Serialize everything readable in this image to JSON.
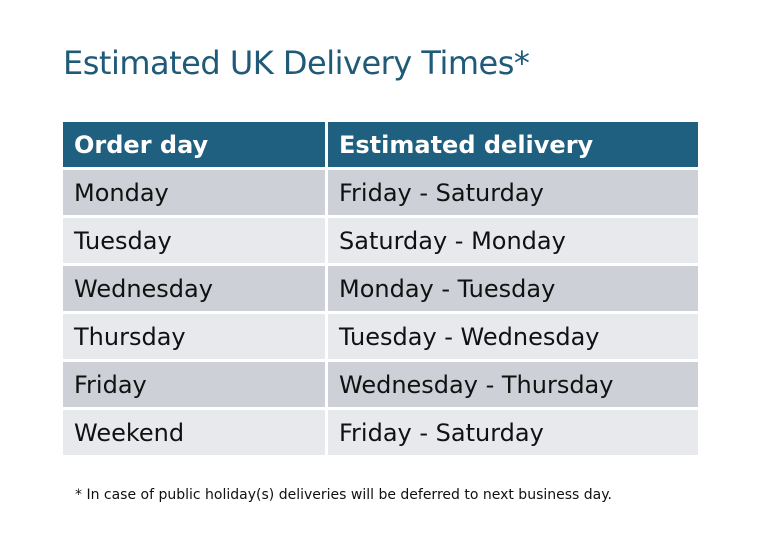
{
  "title": "Estimated UK Delivery Times*",
  "table": {
    "headers": [
      "Order day",
      "Estimated delivery"
    ],
    "rows": [
      [
        "Monday",
        "Friday - Saturday"
      ],
      [
        "Tuesday",
        "Saturday - Monday"
      ],
      [
        "Wednesday",
        "Monday - Tuesday"
      ],
      [
        "Thursday",
        "Tuesday - Wednesday"
      ],
      [
        "Friday",
        "Wednesday - Thursday"
      ],
      [
        "Weekend",
        "Friday - Saturday"
      ]
    ]
  },
  "footnote": "* In case of public holiday(s) deliveries will be deferred to next business day.",
  "colors": {
    "header": "#1f5f7f",
    "title": "#1f5a78",
    "row_dark": "#cdd1d7",
    "row_light": "#e7e9ec"
  }
}
